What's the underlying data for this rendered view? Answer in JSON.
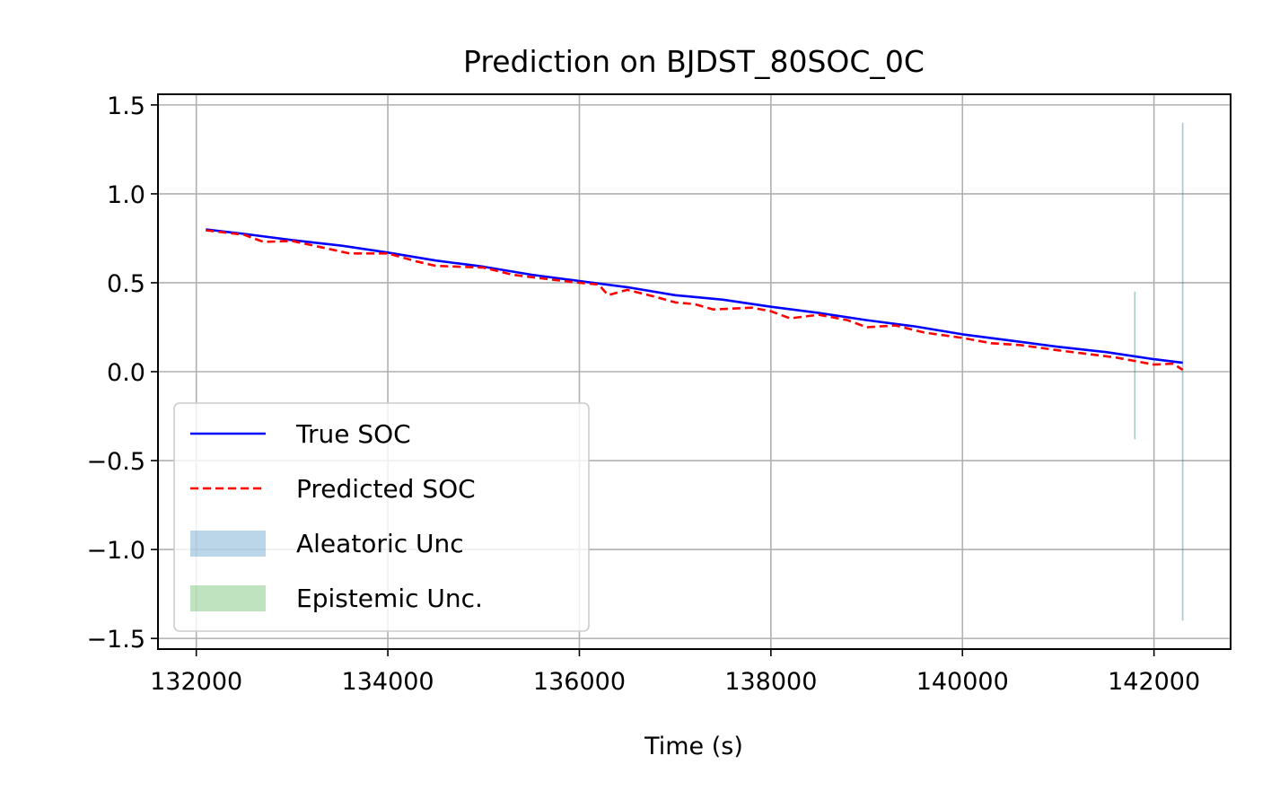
{
  "chart_data": {
    "type": "line",
    "title": "Prediction on BJDST_80SOC_0C",
    "xlabel": "Time (s)",
    "ylabel": "",
    "xlim": [
      131600,
      142800
    ],
    "ylim": [
      -1.56,
      1.56
    ],
    "grid": true,
    "legend_position": "lower-left",
    "x_ticks": [
      132000,
      134000,
      136000,
      138000,
      140000,
      142000
    ],
    "x_tick_labels": [
      "132000",
      "134000",
      "136000",
      "138000",
      "140000",
      "142000"
    ],
    "y_ticks": [
      -1.5,
      -1.0,
      -0.5,
      0.0,
      0.5,
      1.0,
      1.5
    ],
    "y_tick_labels": [
      "−1.5",
      "−1.0",
      "−0.5",
      "0.0",
      "0.5",
      "1.0",
      "1.5"
    ],
    "series": [
      {
        "name": "True SOC",
        "style": "solid",
        "color": "#0000ff",
        "x": [
          132100,
          132500,
          133000,
          133500,
          134000,
          134500,
          135000,
          135500,
          136000,
          136500,
          137000,
          137500,
          138000,
          138500,
          139000,
          139500,
          140000,
          140500,
          141000,
          141500,
          142000,
          142300
        ],
        "y": [
          0.8,
          0.775,
          0.74,
          0.71,
          0.67,
          0.625,
          0.59,
          0.545,
          0.51,
          0.475,
          0.43,
          0.405,
          0.365,
          0.33,
          0.29,
          0.255,
          0.21,
          0.175,
          0.14,
          0.11,
          0.07,
          0.05
        ]
      },
      {
        "name": "Predicted SOC",
        "style": "dashed",
        "color": "#ff0000",
        "x": [
          132100,
          132500,
          132700,
          133000,
          133300,
          133600,
          134000,
          134300,
          134500,
          135000,
          135300,
          135600,
          136000,
          136200,
          136300,
          136500,
          136800,
          137000,
          137200,
          137400,
          137800,
          138000,
          138200,
          138500,
          138800,
          139000,
          139300,
          139600,
          140000,
          140300,
          140600,
          141000,
          141300,
          141600,
          141800,
          142000,
          142200,
          142300
        ],
        "y": [
          0.795,
          0.77,
          0.73,
          0.735,
          0.7,
          0.665,
          0.665,
          0.62,
          0.595,
          0.585,
          0.545,
          0.525,
          0.5,
          0.49,
          0.43,
          0.46,
          0.42,
          0.39,
          0.38,
          0.35,
          0.36,
          0.34,
          0.3,
          0.32,
          0.29,
          0.25,
          0.26,
          0.22,
          0.19,
          0.16,
          0.15,
          0.12,
          0.1,
          0.08,
          0.06,
          0.04,
          0.045,
          0.01
        ]
      }
    ],
    "uncertainty_bands": [
      {
        "name": "Aleatoric Unc",
        "color": "#1f77b4",
        "opacity": 0.3
      },
      {
        "name": "Epistemic Unc.",
        "color": "#2ca02c",
        "opacity": 0.3
      }
    ],
    "uncertainty_spikes": [
      {
        "x": 141800,
        "y_low": -0.38,
        "y_high": 0.45
      },
      {
        "x": 142300,
        "y_low": -1.4,
        "y_high": 1.4
      }
    ]
  }
}
